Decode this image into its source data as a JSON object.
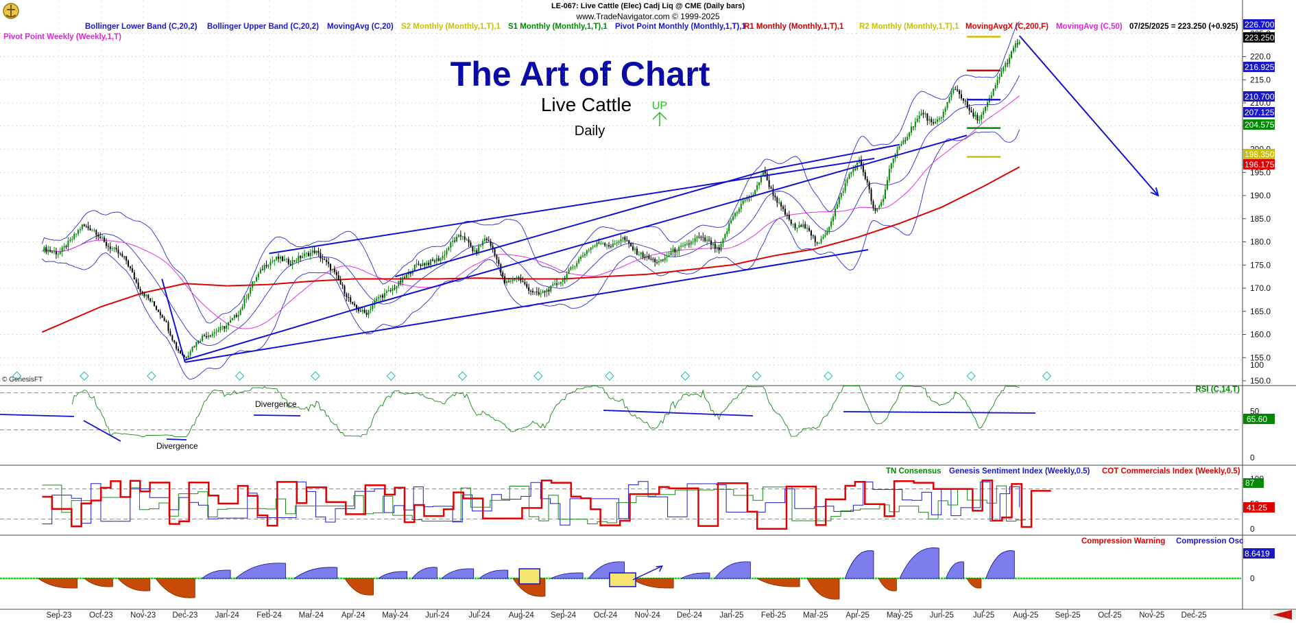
{
  "header": {
    "line1": "LE-067:  Live Cattle (Elec) Cadj Liq @ CME  (Daily bars)",
    "line2": "www.TradeNavigator.com © 1999-2025"
  },
  "watermark": "© GenesisFT",
  "titles": {
    "main": "The Art of Chart",
    "sub": "Live Cattle",
    "period": "Daily",
    "up_label": "UP"
  },
  "legend": [
    {
      "text": "Bollinger Lower Band (C,20,2)",
      "color": "#1818c8"
    },
    {
      "text": "Bollinger Upper Band (C,20,2)",
      "color": "#1818c8"
    },
    {
      "text": "MovingAvg (C,20)",
      "color": "#1818c8"
    },
    {
      "text": "S2 Monthly (Monthly,1,T),1",
      "color": "#c8c000"
    },
    {
      "text": "S1 Monthly (Monthly,1,T),1",
      "color": "#008800"
    },
    {
      "text": "Pivot Point Monthly (Monthly,1,T),1",
      "color": "#1818c8"
    },
    {
      "text": "R1 Monthly (Monthly,1,T),1",
      "color": "#cc0000"
    },
    {
      "text": "R2 Monthly (Monthly,1,T),1",
      "color": "#c8c000"
    },
    {
      "text": "MovingAvgX (C,200,F)",
      "color": "#dd0000"
    },
    {
      "text": "MovingAvg (C,50)",
      "color": "#dd22dd"
    },
    {
      "text": "07/25/2025 = 223.250 (+0.925)",
      "color": "#000000"
    }
  ],
  "legend_line2": {
    "text": "Pivot Point Weekly (Weekly,1,T)",
    "color": "#dd22dd"
  },
  "price_tags": [
    {
      "value": "226.700",
      "bg": "#1818c8",
      "fg": "#ffffff"
    },
    {
      "value": "223.250",
      "bg": "#000000",
      "fg": "#ffffff"
    },
    {
      "value": "216.925",
      "bg": "#1818c8",
      "fg": "#ffffff"
    },
    {
      "value": "210.700",
      "bg": "#1818c8",
      "fg": "#ffffff"
    },
    {
      "value": "207.125",
      "bg": "#1818c8",
      "fg": "#ffffff"
    },
    {
      "value": "204.575",
      "bg": "#008800",
      "fg": "#ffffff"
    },
    {
      "value": "198.350",
      "bg": "#c8c000",
      "fg": "#ffffff"
    },
    {
      "value": "196.175",
      "bg": "#dd0000",
      "fg": "#ffffff"
    }
  ],
  "rsi_panel": {
    "label": "RSI (C,14,T)",
    "label_color": "#008800",
    "ticks": [
      0,
      50,
      100
    ],
    "last_value": "65.60",
    "annotations": [
      "Divergence",
      "Divergence"
    ]
  },
  "sentiment_panel": {
    "labels": [
      {
        "text": "TN Consensus",
        "color": "#008800"
      },
      {
        "text": "Genesis Sentiment Index (Weekly,0.5)",
        "color": "#1818c8"
      },
      {
        "text": "COT Commercials Index (Weekly,0.5)",
        "color": "#dd0000"
      }
    ],
    "ticks": [
      0,
      50,
      100
    ],
    "tags": [
      "87",
      "41.25"
    ]
  },
  "compression_panel": {
    "labels": [
      {
        "text": "Compression Warning",
        "color": "#dd0000"
      },
      {
        "text": "Compression Osc",
        "color": "#1818c8"
      }
    ],
    "ticks": [
      0
    ],
    "tag": "8.6419"
  },
  "chart_data": {
    "type": "candlestick",
    "instrument": "Live Cattle (Elec) Cadj Liq @ CME",
    "y_ticks": [
      150,
      155,
      160,
      165,
      170,
      175,
      180,
      185,
      190,
      195,
      200,
      205,
      210,
      215,
      220,
      225
    ],
    "ylim": [
      148,
      228
    ],
    "x_tick_labels": [
      "Sep-23",
      "Oct-23",
      "Nov-23",
      "Dec-23",
      "Jan-24",
      "Feb-24",
      "Mar-24",
      "Apr-24",
      "May-24",
      "Jun-24",
      "Jul-24",
      "Aug-24",
      "Sep-24",
      "Oct-24",
      "Nov-24",
      "Dec-24",
      "Jan-25",
      "Feb-25",
      "Mar-25",
      "Apr-25",
      "May-25",
      "Jun-25",
      "Jul-25",
      "Aug-25",
      "Sep-25",
      "Oct-25",
      "Nov-25",
      "Dec-25"
    ],
    "x_tick_months": [
      0,
      1,
      2,
      3,
      4,
      5,
      6,
      7,
      8,
      9,
      10,
      11,
      12,
      13,
      14,
      15,
      16,
      17,
      18,
      19,
      20,
      21,
      22,
      23,
      24,
      25,
      26,
      27
    ],
    "price_path": [
      [
        -0.4,
        178.5
      ],
      [
        0.0,
        177.5
      ],
      [
        0.3,
        180.5
      ],
      [
        0.55,
        183.5
      ],
      [
        0.85,
        182.5
      ],
      [
        1.1,
        179.5
      ],
      [
        1.35,
        178.0
      ],
      [
        1.6,
        176.0
      ],
      [
        1.9,
        170.0
      ],
      [
        2.2,
        167.0
      ],
      [
        2.5,
        163.5
      ],
      [
        2.8,
        157.0
      ],
      [
        3.0,
        155.0
      ],
      [
        3.15,
        157.0
      ],
      [
        3.4,
        159.5
      ],
      [
        3.7,
        160.5
      ],
      [
        4.0,
        162.0
      ],
      [
        4.3,
        165.0
      ],
      [
        4.6,
        171.0
      ],
      [
        4.9,
        175.0
      ],
      [
        5.2,
        176.5
      ],
      [
        5.5,
        175.5
      ],
      [
        5.8,
        177.0
      ],
      [
        6.1,
        178.0
      ],
      [
        6.5,
        174.0
      ],
      [
        6.75,
        170.0
      ],
      [
        7.0,
        166.0
      ],
      [
        7.3,
        164.5
      ],
      [
        7.6,
        168.0
      ],
      [
        7.9,
        169.5
      ],
      [
        8.2,
        172.0
      ],
      [
        8.5,
        175.0
      ],
      [
        8.8,
        175.5
      ],
      [
        9.1,
        176.5
      ],
      [
        9.35,
        180.0
      ],
      [
        9.6,
        181.5
      ],
      [
        9.9,
        177.5
      ],
      [
        10.15,
        181.0
      ],
      [
        10.35,
        178.0
      ],
      [
        10.6,
        171.0
      ],
      [
        10.9,
        172.5
      ],
      [
        11.15,
        170.0
      ],
      [
        11.4,
        168.5
      ],
      [
        11.7,
        170.0
      ],
      [
        12.0,
        172.0
      ],
      [
        12.3,
        175.5
      ],
      [
        12.6,
        178.5
      ],
      [
        12.9,
        180.0
      ],
      [
        13.15,
        179.0
      ],
      [
        13.4,
        181.0
      ],
      [
        13.7,
        178.0
      ],
      [
        14.0,
        176.5
      ],
      [
        14.3,
        175.5
      ],
      [
        14.6,
        178.0
      ],
      [
        14.9,
        179.0
      ],
      [
        15.2,
        181.0
      ],
      [
        15.45,
        180.0
      ],
      [
        15.7,
        178.0
      ],
      [
        16.0,
        185.0
      ],
      [
        16.3,
        189.0
      ],
      [
        16.55,
        190.5
      ],
      [
        16.75,
        195.5
      ],
      [
        16.95,
        191.0
      ],
      [
        17.2,
        187.0
      ],
      [
        17.5,
        183.0
      ],
      [
        17.8,
        183.5
      ],
      [
        18.05,
        179.0
      ],
      [
        18.3,
        183.0
      ],
      [
        18.55,
        189.0
      ],
      [
        18.8,
        194.5
      ],
      [
        19.05,
        197.5
      ],
      [
        19.25,
        192.0
      ],
      [
        19.4,
        186.0
      ],
      [
        19.6,
        189.0
      ],
      [
        19.8,
        197.5
      ],
      [
        20.05,
        201.0
      ],
      [
        20.3,
        205.0
      ],
      [
        20.55,
        208.0
      ],
      [
        20.8,
        205.0
      ],
      [
        21.05,
        208.0
      ],
      [
        21.3,
        213.5
      ],
      [
        21.5,
        211.0
      ],
      [
        21.7,
        207.5
      ],
      [
        21.9,
        206.5
      ],
      [
        22.05,
        209.0
      ],
      [
        22.2,
        212.0
      ],
      [
        22.4,
        216.5
      ],
      [
        22.6,
        219.5
      ],
      [
        22.75,
        222.5
      ],
      [
        22.85,
        223.25
      ]
    ],
    "moving_avg_200": [
      [
        -0.4,
        160.5
      ],
      [
        1.0,
        166.0
      ],
      [
        2.0,
        169.0
      ],
      [
        3.0,
        171.0
      ],
      [
        4.0,
        170.5
      ],
      [
        5.0,
        170.8
      ],
      [
        6.0,
        171.5
      ],
      [
        7.0,
        172.0
      ],
      [
        8.0,
        172.0
      ],
      [
        9.0,
        172.0
      ],
      [
        10.0,
        172.2
      ],
      [
        11.0,
        172.0
      ],
      [
        12.0,
        172.0
      ],
      [
        13.0,
        172.5
      ],
      [
        14.0,
        173.0
      ],
      [
        15.0,
        174.0
      ],
      [
        16.0,
        175.0
      ],
      [
        17.0,
        177.0
      ],
      [
        18.0,
        178.5
      ],
      [
        19.0,
        181.0
      ],
      [
        20.0,
        184.0
      ],
      [
        21.0,
        187.5
      ],
      [
        22.0,
        192.0
      ],
      [
        22.85,
        196.175
      ]
    ],
    "trendlines": [
      {
        "p1": [
          2.45,
          172.0
        ],
        "p2": [
          3.0,
          154.0
        ]
      },
      {
        "p1": [
          3.0,
          154.0
        ],
        "p2": [
          19.25,
          178.3
        ]
      },
      {
        "p1": [
          3.0,
          154.5
        ],
        "p2": [
          7.25,
          166.0
        ]
      },
      {
        "p1": [
          7.25,
          166.0
        ],
        "p2": [
          21.6,
          203.0
        ]
      },
      {
        "p1": [
          5.0,
          177.5
        ],
        "p2": [
          19.4,
          198.0
        ]
      },
      {
        "p1": [
          8.0,
          172.5
        ],
        "p2": [
          16.85,
          195.5
        ]
      },
      {
        "p1": [
          16.85,
          195.5
        ],
        "p2": [
          20.0,
          201.0
        ]
      }
    ],
    "projection_arrow": {
      "from": [
        22.85,
        224.5
      ],
      "to": [
        26.15,
        190.0
      ]
    },
    "pivot_levels": [
      {
        "name": "R2",
        "value": 224.3,
        "color": "#c8c000"
      },
      {
        "name": "R1",
        "value": 217.0,
        "color": "#cc0000"
      },
      {
        "name": "PP",
        "value": 210.7,
        "color": "#1818c8"
      },
      {
        "name": "S1",
        "value": 204.575,
        "color": "#008800"
      },
      {
        "name": "S2",
        "value": 198.35,
        "color": "#c8c000"
      }
    ]
  }
}
